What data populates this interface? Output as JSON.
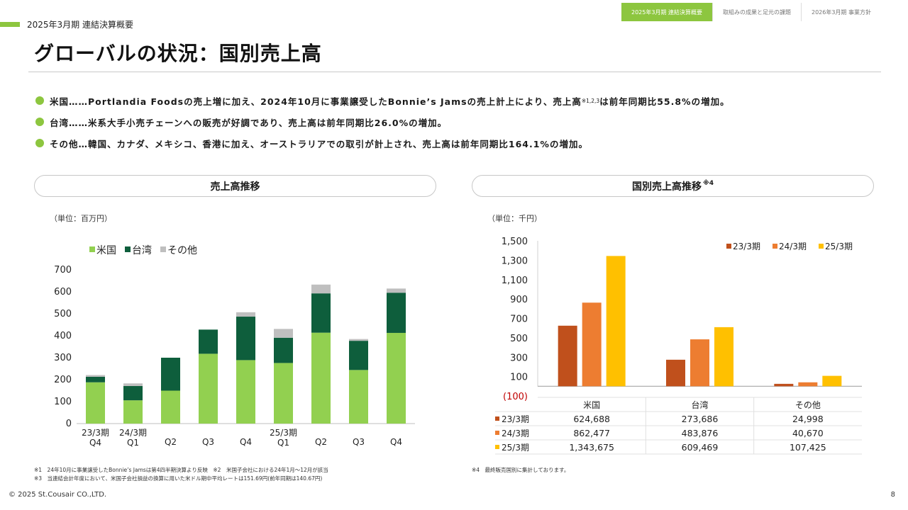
{
  "header": {
    "tabs": [
      {
        "label": "2025年3月期 連結決算概要",
        "active": true
      },
      {
        "label": "取組みの成果と足元の課題",
        "active": false
      },
      {
        "label": "2026年3月期 事業方針",
        "active": false
      }
    ],
    "section_label": "2025年3月期 連結決算概要",
    "title": "グローバルの状況：国別売上高"
  },
  "bullets": [
    {
      "head": "米国……Portlandia Foodsの売上増に加え、2024年10月に事業譲受したBonnie’s Jamsの売上計上により、売上高",
      "note": "※1,2,3",
      "tail": "は前年同期比55.8%の増加。"
    },
    {
      "head": "台湾……米系大手小売チェーンへの販売が好調であり、売上高は前年同期比26.0%の増加。",
      "note": "",
      "tail": ""
    },
    {
      "head": "その他…韓国、カナダ、メキシコ、香港に加え、オーストラリアでの取引が計上され、売上高は前年同期比164.1%の増加。",
      "note": "",
      "tail": ""
    }
  ],
  "left_panel": {
    "title": "売上高推移",
    "unit": "（単位：百万円）"
  },
  "right_panel": {
    "title": "国別売上高推移",
    "note": "※4",
    "unit": "（単位：千円）"
  },
  "colors": {
    "accent": "#8dc63f",
    "us": "#92d050",
    "tw": "#0e5e3c",
    "other": "#bfbfbf",
    "fy23": "#c0501c",
    "fy24": "#ed7d31",
    "fy25": "#ffc000",
    "negative_tick": "#c00000"
  },
  "chart_data": [
    {
      "type": "bar",
      "stacked": true,
      "categories": [
        [
          "23/3期",
          "Q4"
        ],
        [
          "24/3期",
          "Q1"
        ],
        [
          "",
          "Q2"
        ],
        [
          "",
          "Q3"
        ],
        [
          "",
          "Q4"
        ],
        [
          "25/3期",
          "Q1"
        ],
        [
          "",
          "Q2"
        ],
        [
          "",
          "Q3"
        ],
        [
          "",
          "Q4"
        ]
      ],
      "series": [
        {
          "name": "米国",
          "values": [
            188,
            106,
            150,
            318,
            289,
            276,
            414,
            244,
            413
          ]
        },
        {
          "name": "台湾",
          "values": [
            25,
            65,
            150,
            110,
            198,
            115,
            179,
            133,
            183
          ]
        },
        {
          "name": "その他",
          "values": [
            8,
            12,
            0,
            0,
            20,
            40,
            40,
            8,
            19
          ]
        }
      ],
      "ylim": [
        0,
        700
      ],
      "yticks": [
        "0",
        "100",
        "200",
        "300",
        "400",
        "500",
        "600",
        "700"
      ],
      "ytick_values": [
        0,
        100,
        200,
        300,
        400,
        500,
        600,
        700
      ],
      "legend": "top-left",
      "grid": false
    },
    {
      "type": "bar",
      "categories": [
        "米国",
        "台湾",
        "その他"
      ],
      "series": [
        {
          "name": "23/3期",
          "values": [
            624688,
            273686,
            24998
          ],
          "labels": [
            "624,688",
            "273,686",
            "24,998"
          ]
        },
        {
          "name": "24/3期",
          "values": [
            862477,
            483876,
            40670
          ],
          "labels": [
            "862,477",
            "483,876",
            "40,670"
          ]
        },
        {
          "name": "25/3期",
          "values": [
            1343675,
            609469,
            107425
          ],
          "labels": [
            "1,343,675",
            "609,469",
            "107,425"
          ]
        }
      ],
      "ylim": [
        -100000,
        1500000
      ],
      "yticks": [
        "(100)",
        "100",
        "300",
        "500",
        "700",
        "900",
        "1,100",
        "1,300",
        "1,500"
      ],
      "ytick_values": [
        -100000,
        100000,
        300000,
        500000,
        700000,
        900000,
        1100000,
        1300000,
        1500000
      ],
      "legend": "top-right",
      "grid": false,
      "data_table": true
    }
  ],
  "notes_left": [
    "※1　24年10月に事業譲受したBonnie’s Jamsは第4四半期決算より反映　※2　米国子会社における24年1月～12月が該当",
    "※3　当連結会計年度において、米国子会社損益の換算に用いた米ドル期中平均レートは151.69円(前年同期は140.67円)"
  ],
  "notes_right": "※4　最終販売国別に集計しております。",
  "footer": {
    "copyright": "© 2025 St.Cousair CO.,LTD.",
    "page": "8"
  }
}
